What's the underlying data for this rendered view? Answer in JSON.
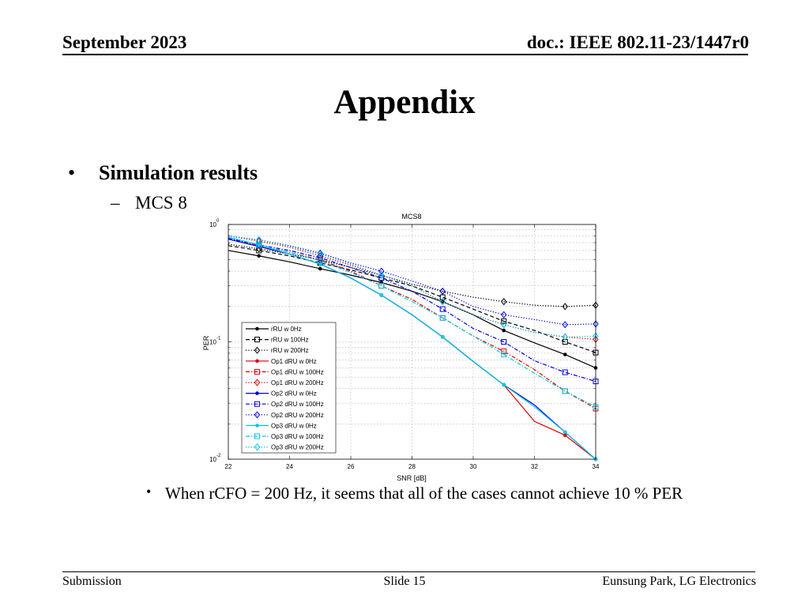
{
  "header": {
    "date": "September 2023",
    "doc": "doc.: IEEE 802.11-23/1447r0"
  },
  "title": "Appendix",
  "bullets": {
    "main_mark": "•",
    "main": "Simulation results",
    "sub_mark": "–",
    "sub": "MCS 8",
    "note_mark": "•",
    "note": "When rCFO = 200 Hz, it seems that all of the cases cannot achieve 10 % PER"
  },
  "footer": {
    "left": "Submission",
    "center": "Slide 15",
    "right": "Eunsung Park, LG Electronics"
  },
  "chart_data": {
    "type": "line",
    "title": "MCS8",
    "xlabel": "SNR [dB]",
    "ylabel": "PER",
    "yscale": "log",
    "xlim": [
      22,
      34
    ],
    "ylim": [
      0.01,
      1
    ],
    "grid": true,
    "legend_position": "bottom-left",
    "x": [
      22,
      23,
      24,
      25,
      26,
      27,
      28,
      29,
      30,
      31,
      32,
      33,
      34
    ],
    "xticks": [
      "22",
      "24",
      "26",
      "28",
      "30",
      "32",
      "34"
    ],
    "yticks": [
      {
        "base": "10",
        "exp": "0"
      },
      {
        "base": "10",
        "exp": "-1"
      },
      {
        "base": "10",
        "exp": "-2"
      }
    ],
    "series": [
      {
        "name": "rRU w 0Hz",
        "color": "#000000",
        "dash": "solid",
        "marker": "dot",
        "values": [
          0.6,
          0.54,
          0.48,
          0.42,
          0.37,
          0.32,
          0.27,
          0.22,
          0.17,
          0.125,
          0.098,
          0.078,
          0.06
        ]
      },
      {
        "name": "rRU w 100Hz",
        "color": "#000000",
        "dash": "dash",
        "marker": "square",
        "values": [
          0.66,
          0.6,
          0.54,
          0.47,
          0.41,
          0.35,
          0.3,
          0.24,
          0.19,
          0.15,
          0.125,
          0.1,
          0.081
        ]
      },
      {
        "name": "rRU w 200Hz",
        "color": "#000000",
        "dash": "dot",
        "marker": "diamond",
        "values": [
          0.68,
          0.62,
          0.56,
          0.5,
          0.43,
          0.37,
          0.31,
          0.27,
          0.24,
          0.22,
          0.205,
          0.2,
          0.205
        ]
      },
      {
        "name": "Op1 dRU w 0Hz",
        "color": "#e00000",
        "dash": "solid",
        "marker": "dot",
        "values": [
          0.75,
          0.65,
          0.56,
          0.46,
          0.35,
          0.25,
          0.17,
          0.11,
          0.068,
          0.043,
          0.021,
          0.016,
          0.01
        ]
      },
      {
        "name": "Op1 dRU w 100Hz",
        "color": "#e00000",
        "dash": "dashdot",
        "marker": "square",
        "values": [
          0.76,
          0.66,
          0.58,
          0.5,
          0.4,
          0.3,
          0.23,
          0.16,
          0.112,
          0.083,
          0.058,
          0.038,
          0.027
        ]
      },
      {
        "name": "Op1 dRU w 200Hz",
        "color": "#e00000",
        "dash": "dot",
        "marker": "diamond",
        "values": [
          0.8,
          0.72,
          0.64,
          0.54,
          0.45,
          0.37,
          0.3,
          0.22,
          0.17,
          0.14,
          0.12,
          0.11,
          0.105
        ]
      },
      {
        "name": "Op2 dRU w 0Hz",
        "color": "#0000e0",
        "dash": "solid",
        "marker": "dot",
        "values": [
          0.75,
          0.65,
          0.56,
          0.46,
          0.35,
          0.25,
          0.17,
          0.11,
          0.068,
          0.043,
          0.029,
          0.017,
          0.01
        ]
      },
      {
        "name": "Op2 dRU w 100Hz",
        "color": "#0000e0",
        "dash": "dashdot",
        "marker": "square",
        "values": [
          0.76,
          0.67,
          0.6,
          0.52,
          0.43,
          0.35,
          0.27,
          0.19,
          0.13,
          0.1,
          0.069,
          0.055,
          0.046
        ]
      },
      {
        "name": "Op2 dRU w 200Hz",
        "color": "#0000e0",
        "dash": "dot",
        "marker": "diamond",
        "values": [
          0.8,
          0.74,
          0.66,
          0.57,
          0.47,
          0.4,
          0.33,
          0.27,
          0.2,
          0.17,
          0.155,
          0.14,
          0.142
        ]
      },
      {
        "name": "Op3 dRU w 0Hz",
        "color": "#00c8e8",
        "dash": "solid",
        "marker": "dot",
        "values": [
          0.78,
          0.67,
          0.56,
          0.46,
          0.35,
          0.25,
          0.17,
          0.11,
          0.068,
          0.043,
          0.028,
          0.017,
          0.01
        ]
      },
      {
        "name": "Op3 dRU w 100Hz",
        "color": "#00c8e8",
        "dash": "dashdot",
        "marker": "square",
        "values": [
          0.78,
          0.67,
          0.58,
          0.49,
          0.39,
          0.3,
          0.22,
          0.16,
          0.112,
          0.078,
          0.054,
          0.038,
          0.028
        ]
      },
      {
        "name": "Op3 dRU w 200Hz",
        "color": "#00c8e8",
        "dash": "dot",
        "marker": "diamond",
        "values": [
          0.8,
          0.74,
          0.65,
          0.56,
          0.46,
          0.37,
          0.3,
          0.22,
          0.17,
          0.14,
          0.12,
          0.11,
          0.112
        ]
      }
    ]
  }
}
